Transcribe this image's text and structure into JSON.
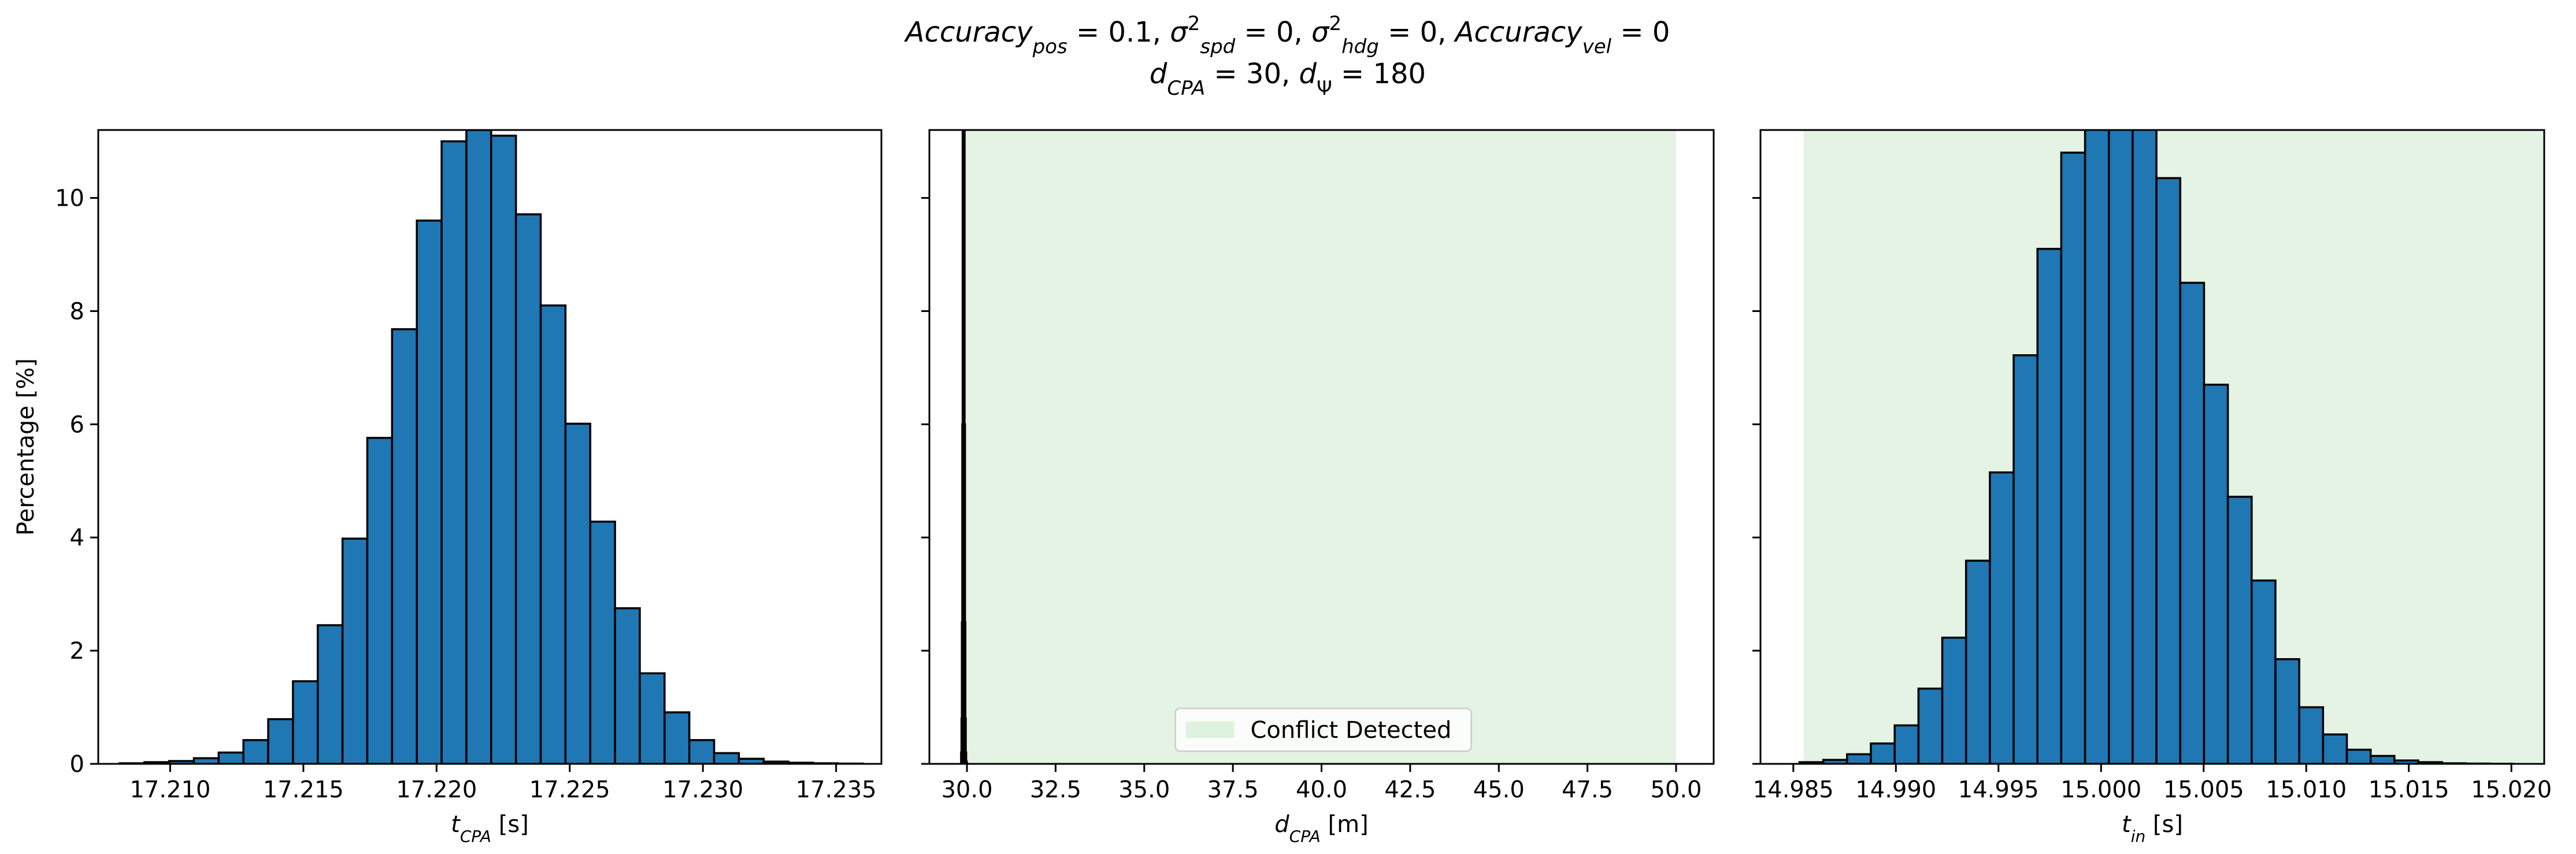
{
  "figure": {
    "title_line1": [
      {
        "t": "Accuracy",
        "it": true
      },
      {
        "t": "pos",
        "it": true,
        "sub": true
      },
      {
        "t": " = 0.1, "
      },
      {
        "t": "σ",
        "it": true
      },
      {
        "t": "2",
        "sup": true
      },
      {
        "t": "spd",
        "it": true,
        "sub": true
      },
      {
        "t": " = 0, "
      },
      {
        "t": "σ",
        "it": true
      },
      {
        "t": "2",
        "sup": true
      },
      {
        "t": "hdg",
        "it": true,
        "sub": true
      },
      {
        "t": " = 0, "
      },
      {
        "t": "Accuracy",
        "it": true
      },
      {
        "t": "vel",
        "it": true,
        "sub": true
      },
      {
        "t": " = 0"
      }
    ],
    "title_line2": [
      {
        "t": "d",
        "it": true
      },
      {
        "t": "CPA",
        "it": true,
        "sub": true
      },
      {
        "t": " = 30, "
      },
      {
        "t": "d",
        "it": true
      },
      {
        "t": "Ψ",
        "sub": true
      },
      {
        "t": " = 180"
      }
    ]
  },
  "chart_data": [
    {
      "type": "bar",
      "ylabel": "Percentage [%]",
      "xlabel": [
        {
          "t": "t",
          "it": true
        },
        {
          "t": "CPA",
          "it": true,
          "sub": true
        },
        {
          "t": " [s]"
        }
      ],
      "xlim": [
        17.2073,
        17.2367
      ],
      "ylim": [
        0,
        11.2
      ],
      "xticks": [
        17.21,
        17.215,
        17.22,
        17.225,
        17.23,
        17.235
      ],
      "xtick_labels": [
        "17.210",
        "17.215",
        "17.220",
        "17.225",
        "17.230",
        "17.235"
      ],
      "yticks": [
        0,
        2,
        4,
        6,
        8,
        10
      ],
      "ytick_labels": [
        "0",
        "2",
        "4",
        "6",
        "8",
        "10"
      ],
      "bar_color": "#1f77b4",
      "bin_start": 17.2081,
      "bin_width": 0.00093,
      "values": [
        0.01,
        0.03,
        0.05,
        0.1,
        0.2,
        0.42,
        0.79,
        1.46,
        2.45,
        3.98,
        5.76,
        7.68,
        9.6,
        11.0,
        11.2,
        11.1,
        9.71,
        8.1,
        6.01,
        4.28,
        2.75,
        1.6,
        0.91,
        0.42,
        0.19,
        0.09,
        0.04,
        0.02,
        0.01,
        0.005
      ],
      "shaded_region": null
    },
    {
      "type": "bar",
      "ylabel": "",
      "xlabel": [
        {
          "t": "d",
          "it": true
        },
        {
          "t": "CPA",
          "it": true,
          "sub": true
        },
        {
          "t": " [m]"
        }
      ],
      "xlim": [
        28.94,
        51.06
      ],
      "ylim": [
        0,
        11.2
      ],
      "xticks": [
        30.0,
        32.5,
        35.0,
        37.5,
        40.0,
        42.5,
        45.0,
        47.5,
        50.0
      ],
      "xtick_labels": [
        "30.0",
        "32.5",
        "35.0",
        "37.5",
        "40.0",
        "42.5",
        "45.0",
        "47.5",
        "50.0"
      ],
      "yticks": [
        0,
        2,
        4,
        6,
        8,
        10
      ],
      "ytick_labels": [],
      "bar_color": "#1f77b4",
      "bin_start": 29.835,
      "bin_width": 0.011,
      "values": [
        0.2,
        0.8,
        2.5,
        6.0,
        11.5,
        18.0,
        22.0,
        18.0,
        11.5,
        6.0,
        2.5,
        0.8,
        0.2,
        0.05,
        0.02
      ],
      "shaded_region": {
        "x0": 29.9,
        "x1": 50.0,
        "color": "#2ca02c",
        "opacity": 0.13
      },
      "legend": {
        "label": "Conflict Detected",
        "placement": "lower center"
      }
    },
    {
      "type": "bar",
      "ylabel": "",
      "xlabel": [
        {
          "t": "t",
          "it": true
        },
        {
          "t": "in",
          "it": true,
          "sub": true
        },
        {
          "t": " [s]"
        }
      ],
      "xlim": [
        14.9834,
        15.0216
      ],
      "ylim": [
        0,
        11.2
      ],
      "xticks": [
        14.985,
        14.99,
        14.995,
        15.0,
        15.005,
        15.01,
        15.015,
        15.02
      ],
      "xtick_labels": [
        "14.985",
        "14.990",
        "14.995",
        "15.000",
        "15.005",
        "15.010",
        "15.015",
        "15.020"
      ],
      "yticks": [
        0,
        2,
        4,
        6,
        8,
        10
      ],
      "ytick_labels": [],
      "bar_color": "#1f77b4",
      "bin_start": 14.9853,
      "bin_width": 0.00116,
      "values": [
        0.03,
        0.07,
        0.17,
        0.36,
        0.68,
        1.33,
        2.23,
        3.59,
        5.15,
        7.22,
        9.1,
        10.8,
        11.6,
        12.4,
        11.4,
        10.35,
        8.5,
        6.7,
        4.72,
        3.24,
        1.85,
        1.0,
        0.52,
        0.25,
        0.14,
        0.06,
        0.03,
        0.01,
        0.005,
        0.002
      ],
      "shaded_region": {
        "x0": 14.9855,
        "x1": 15.0216,
        "color": "#2ca02c",
        "opacity": 0.13
      }
    }
  ]
}
